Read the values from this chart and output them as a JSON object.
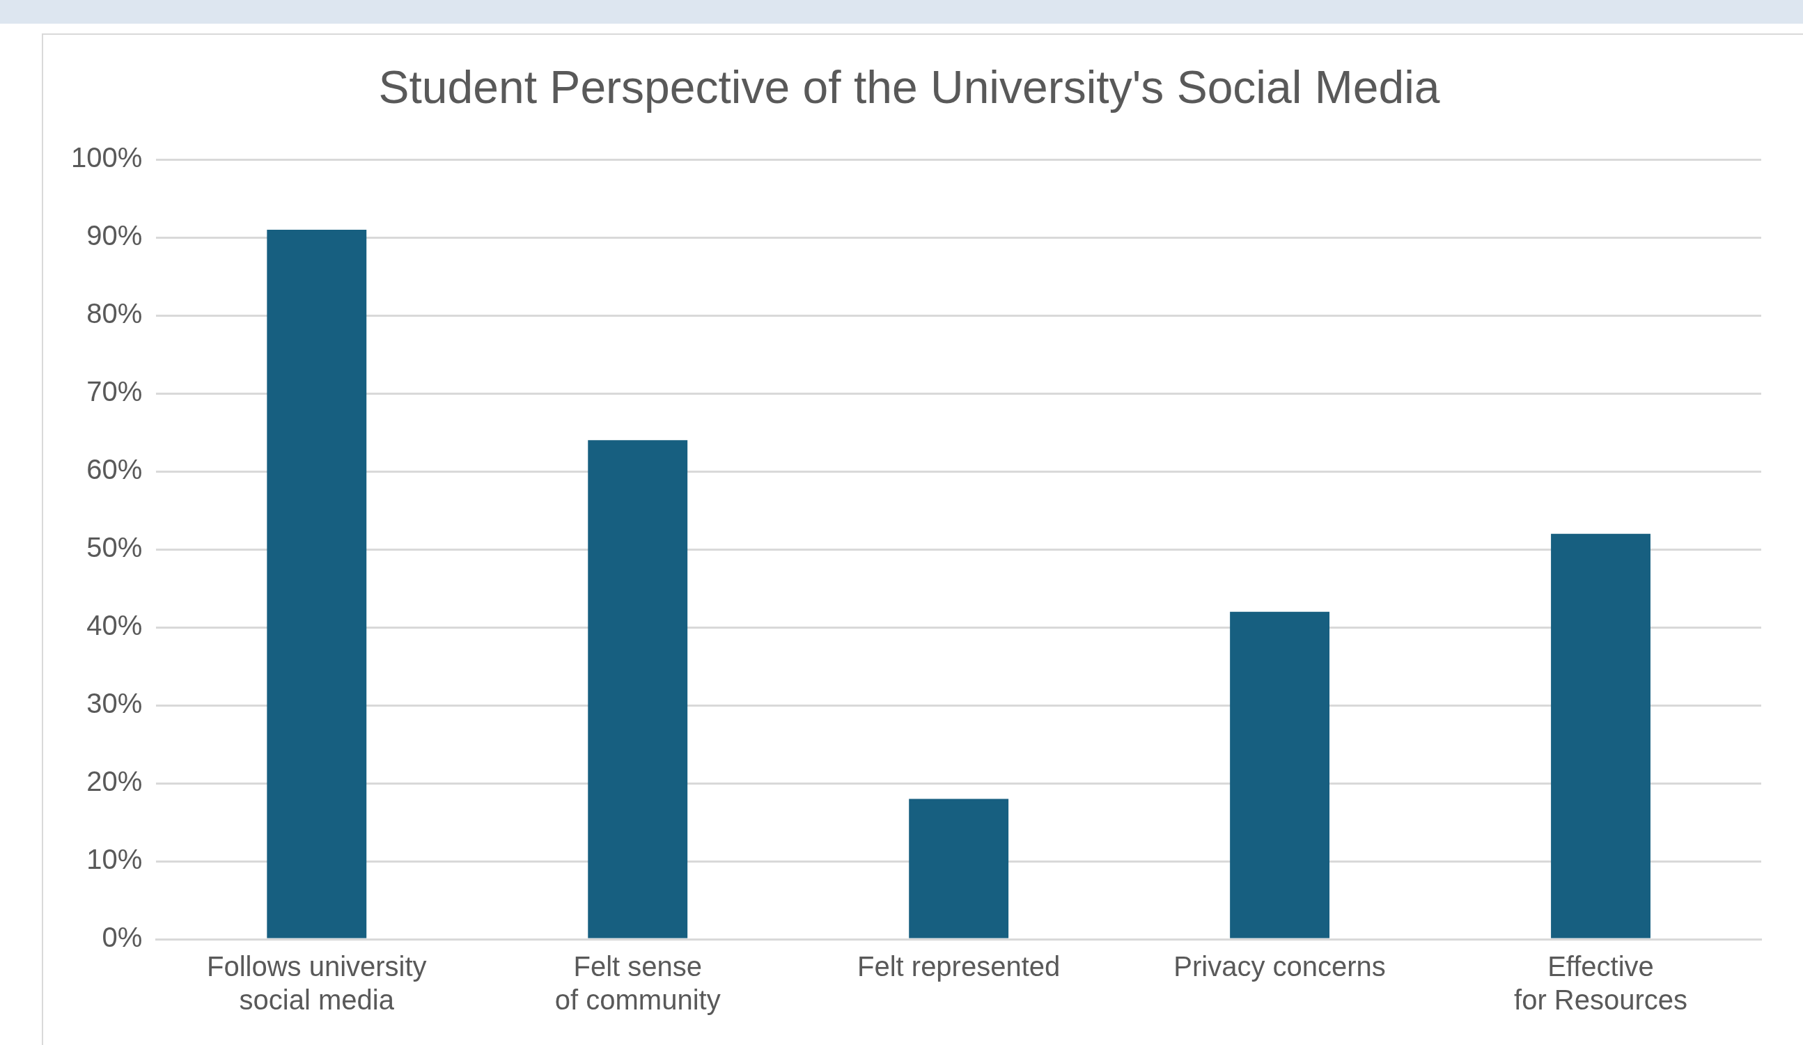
{
  "chart_data": {
    "type": "bar",
    "title": "Student Perspective of the University's Social Media",
    "categories": [
      "Follows university social media",
      "Felt sense of community",
      "Felt represented",
      "Privacy concerns",
      "Effective for Resources"
    ],
    "values": [
      91,
      64,
      18,
      42,
      52
    ],
    "color": "#175f80",
    "ylim": [
      0,
      100
    ],
    "yticks": [
      {
        "value": 0,
        "label": "0%"
      },
      {
        "value": 10,
        "label": "10%"
      },
      {
        "value": 20,
        "label": "20%"
      },
      {
        "value": 30,
        "label": "30%"
      },
      {
        "value": 40,
        "label": "40%"
      },
      {
        "value": 50,
        "label": "50%"
      },
      {
        "value": 60,
        "label": "60%"
      },
      {
        "value": 70,
        "label": "70%"
      },
      {
        "value": 80,
        "label": "80%"
      },
      {
        "value": 90,
        "label": "90%"
      },
      {
        "value": 100,
        "label": "100%"
      }
    ],
    "grid": "y",
    "legend": false
  }
}
